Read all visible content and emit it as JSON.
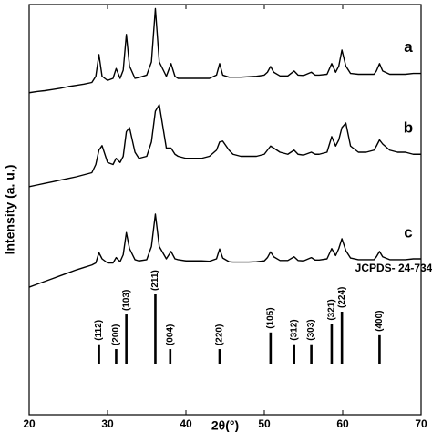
{
  "chart_data": {
    "type": "line",
    "x_label": "2θ(°)",
    "y_label": "Intensity (a. u.)",
    "xlim": [
      20,
      70
    ],
    "xticks": [
      20,
      30,
      40,
      50,
      60,
      70
    ],
    "ylim": [
      0,
      100
    ],
    "x": [
      20,
      21,
      22,
      23,
      24,
      25,
      26,
      27,
      28,
      28.5,
      28.9,
      29.3,
      30,
      30.7,
      31.1,
      31.6,
      32,
      32.4,
      32.8,
      33.5,
      34,
      35,
      35.6,
      36.1,
      36.6,
      37.5,
      38.1,
      38.6,
      39,
      40,
      41,
      42,
      43,
      43.9,
      44.3,
      44.7,
      45.5,
      46,
      47,
      48,
      49,
      50,
      50.4,
      50.8,
      51.2,
      52,
      53,
      53.8,
      54.3,
      55,
      56,
      56.5,
      57,
      58,
      58.6,
      59.1,
      59.5,
      59.9,
      60.4,
      61,
      62,
      63,
      64,
      64.3,
      64.7,
      65.1,
      66,
      67,
      68,
      69,
      70
    ],
    "series": [
      {
        "name": "a",
        "color": "#000000",
        "values": [
          78.5,
          78.8,
          79,
          79.3,
          79.6,
          80,
          80.3,
          80.6,
          81,
          82.5,
          87.8,
          82.5,
          81.5,
          82,
          84.4,
          82,
          84,
          92.7,
          85,
          82,
          82.2,
          82.8,
          86,
          99,
          86,
          82.5,
          85.6,
          82.5,
          82,
          82,
          82,
          82,
          82,
          82.8,
          85.6,
          82.8,
          82.3,
          82.3,
          82.3,
          82.4,
          82.5,
          82.8,
          83.5,
          84.9,
          83.5,
          82.6,
          82.6,
          83.8,
          82.8,
          82.7,
          83.5,
          82.8,
          82.8,
          83,
          85.6,
          83.5,
          85,
          88.9,
          85,
          83.2,
          83,
          83,
          83,
          83.8,
          85.6,
          83.8,
          83,
          83,
          83,
          83.2,
          83.2
        ]
      },
      {
        "name": "b",
        "color": "#000000",
        "values": [
          55.6,
          56,
          56.4,
          56.8,
          57.2,
          57.6,
          58,
          58.5,
          59,
          61,
          64.5,
          65.6,
          61.5,
          61,
          62.5,
          61.5,
          63,
          69,
          70,
          64,
          62.5,
          63,
          66.5,
          74,
          75.6,
          65,
          65,
          63.5,
          63,
          62.5,
          62.5,
          62.5,
          63,
          64.5,
          66.5,
          66.7,
          64.5,
          63.5,
          63,
          63,
          63,
          63.5,
          64.5,
          65.5,
          65,
          64,
          63.5,
          64.5,
          63.5,
          63.3,
          64,
          63.5,
          63.5,
          64,
          67.8,
          65.5,
          67,
          70,
          71.1,
          65.5,
          64,
          64,
          64.5,
          65.5,
          67,
          66,
          64.5,
          64,
          64,
          63.5,
          63.5
        ]
      },
      {
        "name": "c",
        "color": "#000000",
        "values": [
          31.1,
          31.8,
          32.5,
          33.2,
          33.9,
          34.6,
          35.3,
          35.9,
          36.5,
          37,
          39.5,
          38,
          37,
          37,
          38.3,
          37.3,
          39,
          44.4,
          40.5,
          37.8,
          37.5,
          37.8,
          41,
          48.9,
          41,
          38,
          39.8,
          38,
          37.8,
          37.5,
          37.5,
          37.5,
          37.4,
          38,
          40.4,
          38.2,
          37.3,
          37.2,
          37.2,
          37.2,
          37.3,
          37.5,
          38.3,
          39.7,
          38.5,
          37.6,
          37.6,
          38.5,
          37.6,
          37.5,
          38.3,
          37.7,
          37.7,
          38,
          40.5,
          38.8,
          40.5,
          42.9,
          40,
          38.2,
          37.8,
          37.8,
          37.8,
          38.5,
          39.8,
          38.5,
          37.8,
          37.8,
          37.8,
          38,
          38
        ]
      }
    ],
    "reference": {
      "type": "stick",
      "name": "JCPDS- 24-734",
      "color": "#000000",
      "ylim": [
        0,
        100
      ],
      "x": [
        28.9,
        31.1,
        32.4,
        36.1,
        38.0,
        44.3,
        50.8,
        53.8,
        56.0,
        58.6,
        59.9,
        64.7
      ],
      "labels": [
        "(112)",
        "(200)",
        "(103)",
        "(211)",
        "(004)",
        "(220)",
        "(105)",
        "(312)",
        "(303)",
        "(321)",
        "(224)",
        "(400)"
      ],
      "values": [
        28,
        21,
        71,
        100,
        21,
        21,
        45,
        28,
        28,
        57,
        75,
        41
      ]
    }
  }
}
